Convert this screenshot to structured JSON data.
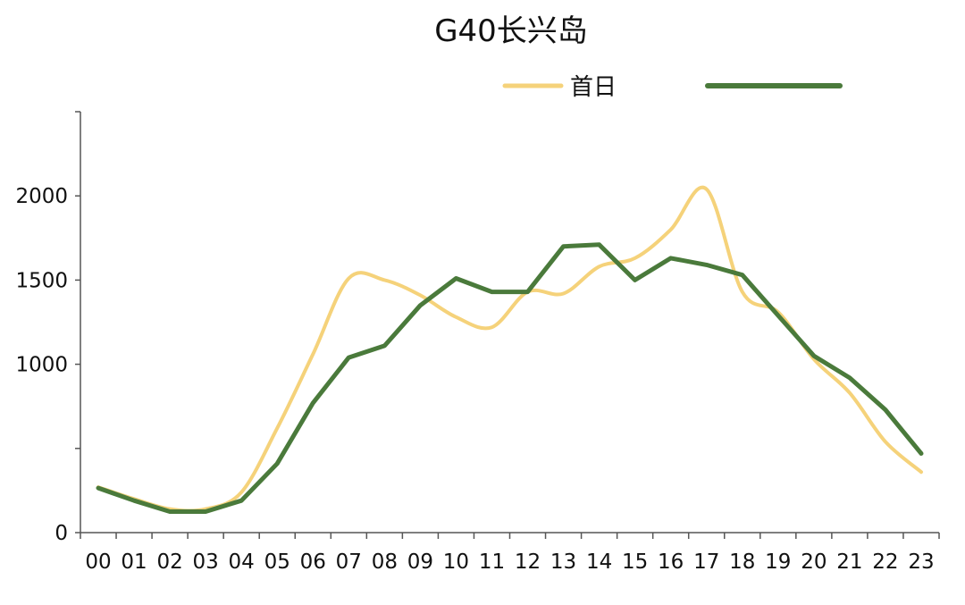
{
  "chart_data": {
    "type": "line",
    "title": "G40长兴岛",
    "xlabel": "",
    "ylabel": "",
    "categories": [
      "00",
      "01",
      "02",
      "03",
      "04",
      "05",
      "06",
      "07",
      "08",
      "09",
      "10",
      "11",
      "12",
      "13",
      "14",
      "15",
      "16",
      "17",
      "18",
      "19",
      "20",
      "21",
      "22",
      "23"
    ],
    "ylim": [
      0,
      2500
    ],
    "yticks": [
      0,
      500,
      1000,
      1500,
      2000,
      2500
    ],
    "ytick_labels": [
      "0",
      "",
      "1000",
      "1500",
      "2000",
      ""
    ],
    "grid": false,
    "legend_position": "top-right",
    "series": [
      {
        "name": "首日",
        "color": "#F5D27A",
        "smooth": true,
        "values": [
          270,
          200,
          140,
          140,
          240,
          620,
          1060,
          1510,
          1500,
          1410,
          1280,
          1220,
          1430,
          1420,
          1580,
          1630,
          1800,
          2040,
          1430,
          1310,
          1030,
          830,
          540,
          360
        ]
      },
      {
        "name": "",
        "color": "#4A7A3B",
        "smooth": false,
        "values": [
          265,
          190,
          125,
          125,
          190,
          410,
          770,
          1040,
          1110,
          1350,
          1510,
          1430,
          1430,
          1700,
          1710,
          1500,
          1630,
          1590,
          1530,
          1290,
          1050,
          920,
          730,
          470
        ]
      }
    ]
  }
}
